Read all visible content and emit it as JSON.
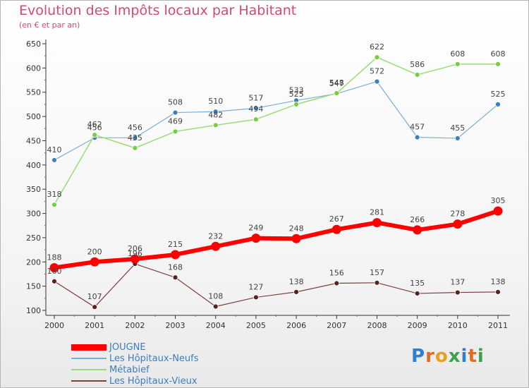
{
  "title": "Evolution des Impôts locaux par Habitant",
  "subtitle": "(en € et par an)",
  "logo_text": "Proxiti",
  "chart_data": {
    "type": "line",
    "title": "Evolution des Impôts locaux par Habitant",
    "subtitle": "(en € et par an)",
    "xlabel": "",
    "ylabel": "",
    "x": [
      "2000",
      "2001",
      "2002",
      "2003",
      "2004",
      "2005",
      "2006",
      "2007",
      "2008",
      "2009",
      "2010",
      "2011"
    ],
    "ylim": [
      100,
      650
    ],
    "yticks": [
      100,
      150,
      200,
      250,
      300,
      350,
      400,
      450,
      500,
      550,
      600,
      650
    ],
    "grid": false,
    "legend_position": "bottom-left",
    "series": [
      {
        "name": "JOUGNE",
        "color": "#ff0000",
        "values": [
          188,
          200,
          206,
          215,
          232,
          249,
          248,
          267,
          281,
          266,
          278,
          305
        ]
      },
      {
        "name": "Les Hôpitaux-Neufs",
        "color": "#7aaed6",
        "values": [
          410,
          456,
          456,
          508,
          510,
          517,
          533,
          547,
          572,
          457,
          455,
          525
        ]
      },
      {
        "name": "Métabief",
        "color": "#99dd77",
        "values": [
          318,
          462,
          435,
          469,
          482,
          494,
          525,
          548,
          622,
          586,
          608,
          608
        ]
      },
      {
        "name": "Les Hôpitaux-Vieux",
        "color": "#7f3f3f",
        "values": [
          160,
          107,
          196,
          168,
          108,
          127,
          138,
          156,
          157,
          135,
          137,
          138
        ]
      }
    ]
  }
}
